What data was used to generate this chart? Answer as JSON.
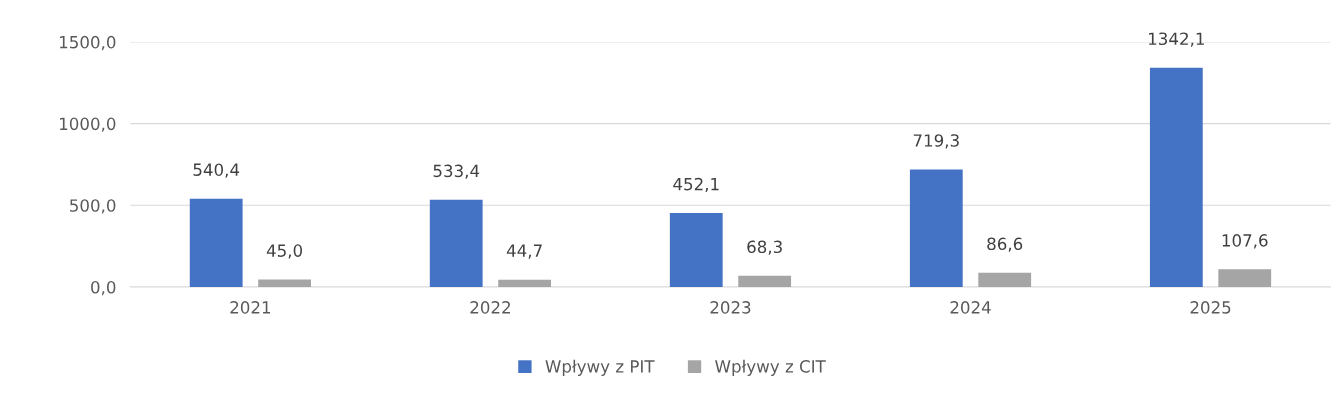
{
  "chart_data": {
    "type": "bar",
    "categories": [
      "2021",
      "2022",
      "2023",
      "2024",
      "2025"
    ],
    "series": [
      {
        "name": "Wpływy z PIT",
        "color": "#4472c4",
        "values": [
          540.4,
          533.4,
          452.1,
          719.3,
          1342.1
        ],
        "value_labels": [
          "540,4",
          "533,4",
          "452,1",
          "719,3",
          "1342,1"
        ]
      },
      {
        "name": "Wpływy z CIT",
        "color": "#a5a5a5",
        "values": [
          45.0,
          44.7,
          68.3,
          86.6,
          107.6
        ],
        "value_labels": [
          "45,0",
          "44,7",
          "68,3",
          "86,6",
          "107,6"
        ]
      }
    ],
    "ylim": [
      0,
      1500
    ],
    "yticks": [
      {
        "value": 0,
        "label": "0,0"
      },
      {
        "value": 500,
        "label": "500,0"
      },
      {
        "value": 1000,
        "label": "1000,0"
      },
      {
        "value": 1500,
        "label": "1500,0"
      }
    ],
    "grid": "y",
    "legend": "bottom"
  }
}
